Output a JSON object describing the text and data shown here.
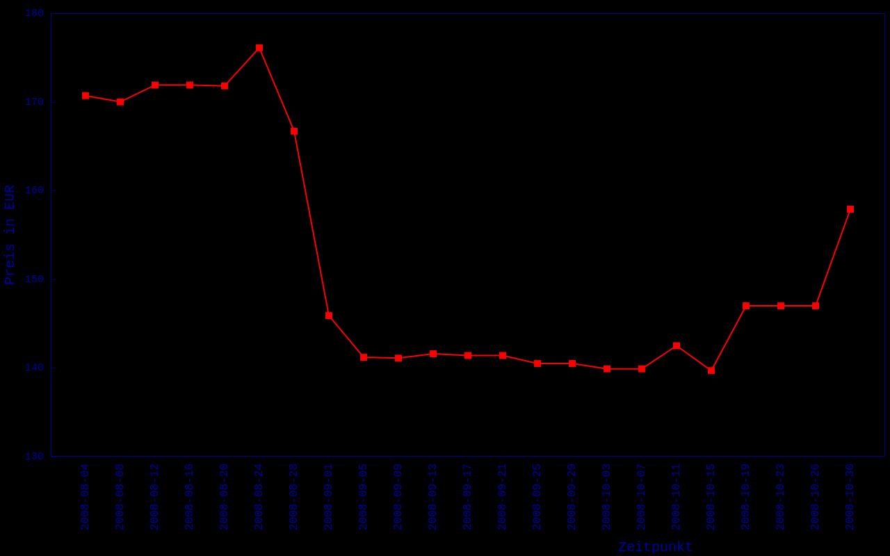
{
  "chart_data": {
    "type": "line",
    "xlabel": "Zeitpunkt",
    "ylabel": "Preis in EUR",
    "categories": [
      "2008-08-04",
      "2008-08-08",
      "2008-08-12",
      "2008-08-16",
      "2008-08-20",
      "2008-08-24",
      "2008-08-28",
      "2008-09-01",
      "2008-09-05",
      "2008-09-09",
      "2008-09-13",
      "2008-09-17",
      "2008-09-21",
      "2008-09-25",
      "2008-09-29",
      "2008-10-03",
      "2008-10-07",
      "2008-10-11",
      "2008-10-15",
      "2008-10-19",
      "2008-10-23",
      "2008-10-26",
      "2008-10-30"
    ],
    "series": [
      {
        "color": "#ff0000",
        "values": [
          170.7,
          170.0,
          171.9,
          171.9,
          171.8,
          176.1,
          166.7,
          145.9,
          141.2,
          141.1,
          141.6,
          141.4,
          141.4,
          140.5,
          140.5,
          139.9,
          139.9,
          142.5,
          139.7,
          147.0,
          147.0,
          147.0,
          157.9
        ]
      }
    ],
    "ylim": [
      130,
      180
    ],
    "yticks": [
      130,
      140,
      150,
      160,
      170,
      180
    ],
    "marker": "square",
    "line_style": "solid"
  }
}
